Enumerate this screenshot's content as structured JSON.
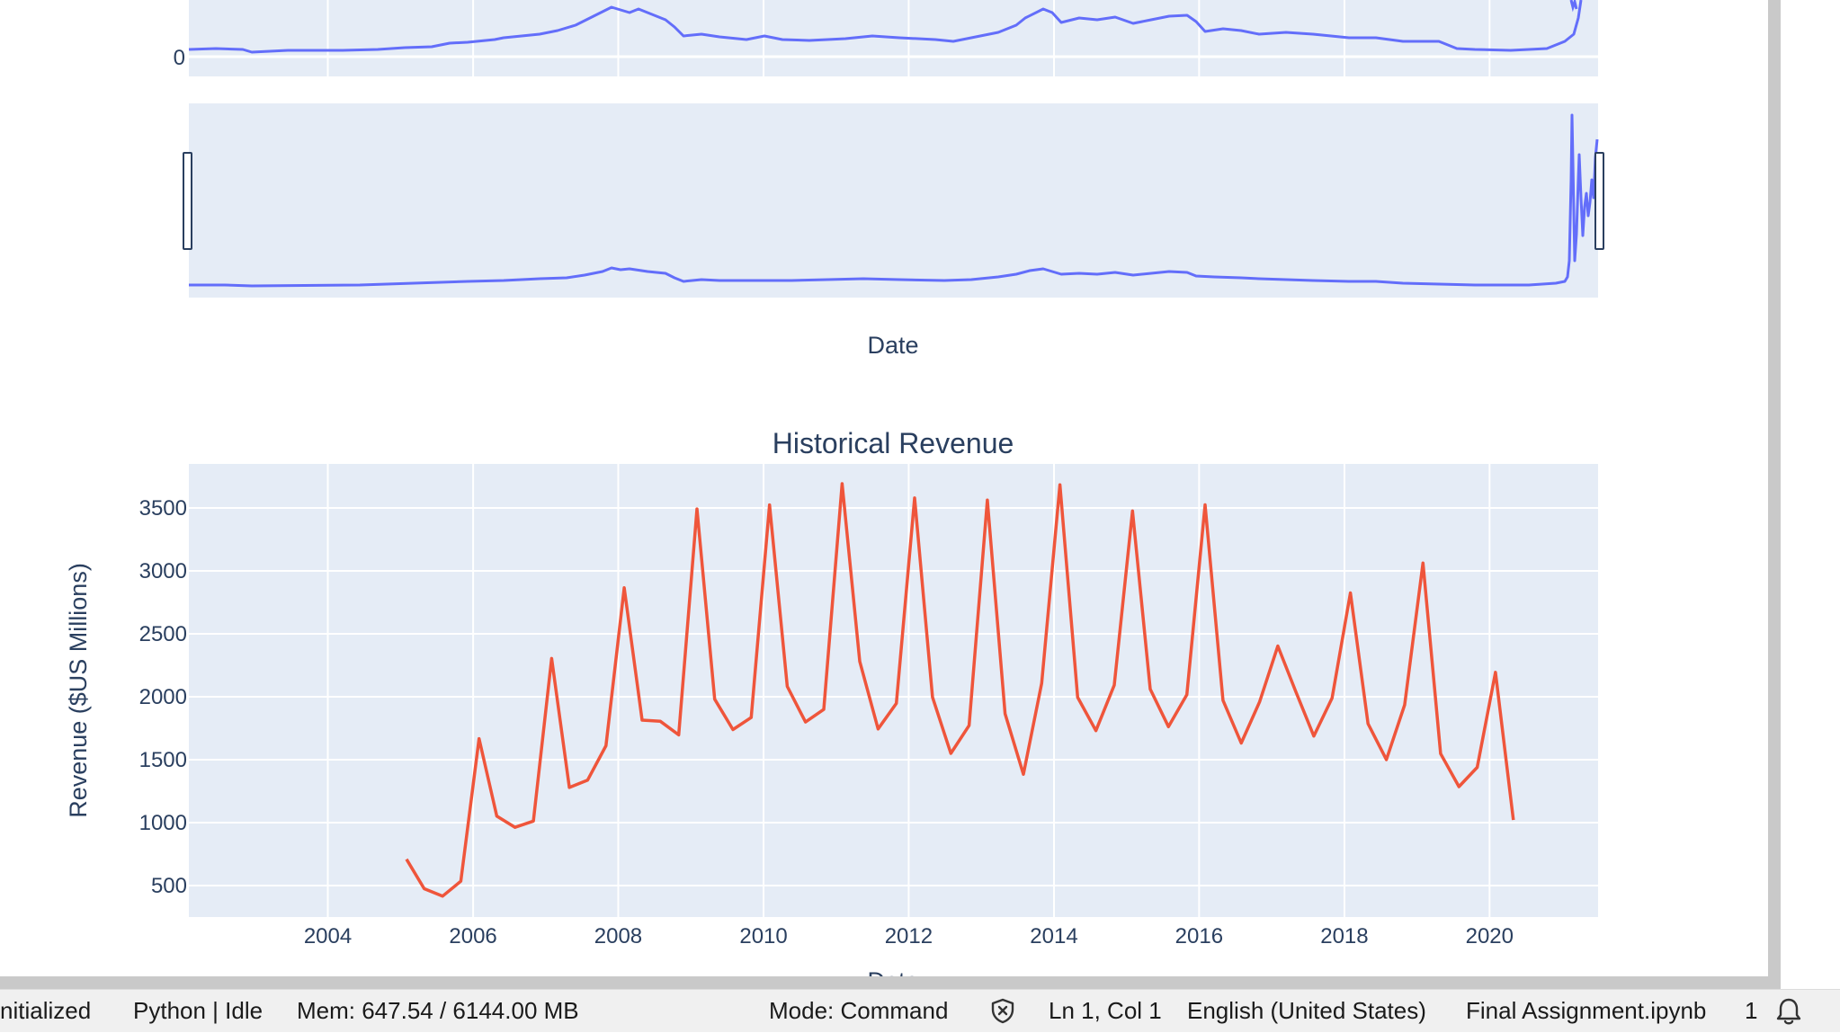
{
  "top_chart": {
    "y_tick": "0",
    "range_slider_axis_title": "Date"
  },
  "revenue_chart": {
    "title": "Historical Revenue",
    "ylabel": "Revenue ($US Millions)",
    "xlabel": "Date"
  },
  "chart_data": [
    {
      "type": "line",
      "title": "",
      "xlabel": "Date",
      "ylabel": "",
      "note": "cropped stock price line with range slider; only y tick '0' visible",
      "colors": {
        "line": "#636efa",
        "plot_bg": "#e5ecf6"
      },
      "grid": true,
      "rangeslider": true
    },
    {
      "type": "line",
      "title": "Historical Revenue",
      "xlabel": "Date",
      "ylabel": "Revenue ($US Millions)",
      "ylim": [
        250,
        3850
      ],
      "xlim": [
        "2002-02-01",
        "2021-06-30"
      ],
      "x_ticks": [
        "2004",
        "2006",
        "2008",
        "2010",
        "2012",
        "2014",
        "2016",
        "2018",
        "2020"
      ],
      "y_ticks": [
        500,
        1000,
        1500,
        2000,
        2500,
        3000,
        3500
      ],
      "grid": true,
      "colors": {
        "line": "#ef553b",
        "plot_bg": "#e5ecf6"
      },
      "series": [
        {
          "x": [
            "2005-01-31",
            "2005-04-30",
            "2005-07-31",
            "2005-10-31",
            "2006-01-31",
            "2006-04-30",
            "2006-07-31",
            "2006-10-31",
            "2007-01-31",
            "2007-04-30",
            "2007-07-31",
            "2007-10-31",
            "2008-01-31",
            "2008-04-30",
            "2008-07-31",
            "2008-10-31",
            "2009-01-31",
            "2009-04-30",
            "2009-07-31",
            "2009-10-31",
            "2010-01-31",
            "2010-04-30",
            "2010-07-31",
            "2010-10-31",
            "2011-01-31",
            "2011-04-30",
            "2011-07-31",
            "2011-10-31",
            "2012-01-31",
            "2012-04-30",
            "2012-07-31",
            "2012-10-31",
            "2013-01-31",
            "2013-04-30",
            "2013-07-31",
            "2013-10-31",
            "2014-01-31",
            "2014-04-30",
            "2014-07-31",
            "2014-10-31",
            "2015-01-31",
            "2015-04-30",
            "2015-07-31",
            "2015-10-31",
            "2016-01-31",
            "2016-04-30",
            "2016-07-31",
            "2016-10-31",
            "2017-01-31",
            "2017-04-30",
            "2017-07-31",
            "2017-10-31",
            "2018-01-31",
            "2018-04-30",
            "2018-07-31",
            "2018-10-31",
            "2019-01-31",
            "2019-04-30",
            "2019-07-31",
            "2019-10-31",
            "2020-01-31",
            "2020-04-30"
          ],
          "values": [
            709,
            475,
            416,
            534,
            1667,
            1052,
            963,
            1012,
            2304,
            1279,
            1338,
            1611,
            2866,
            1814,
            1805,
            1697,
            3492,
            1981,
            1739,
            1835,
            3524,
            2082,
            1799,
            1899,
            3693,
            2281,
            1744,
            1947,
            3579,
            1997,
            1550,
            1772,
            3562,
            1865,
            1384,
            2107,
            3684,
            1996,
            1731,
            2092,
            3476,
            2061,
            1762,
            2016,
            3525,
            1972,
            1632,
            1959,
            2403,
            2046,
            1688,
            1989,
            2825,
            1786,
            1501,
            1935,
            3063,
            1548,
            1286,
            1439,
            2194,
            1021
          ]
        }
      ]
    }
  ],
  "status_bar": {
    "kernel_state": "nitialized",
    "kernel": "Python | Idle",
    "memory": "Mem: 647.54 / 6144.00 MB",
    "mode": "Mode: Command",
    "cursor": "Ln 1, Col 1",
    "language": "English (United States)",
    "file": "Final Assignment.ipynb",
    "notifications": "1"
  }
}
